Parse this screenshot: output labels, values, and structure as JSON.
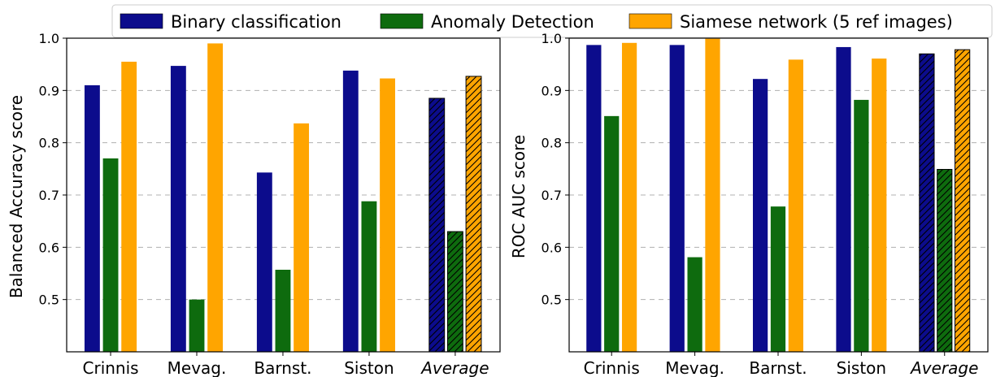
{
  "legend": {
    "position": "top",
    "entries": [
      {
        "label": "Binary classification",
        "color": "#0c0c8c"
      },
      {
        "label": "Anomaly Detection",
        "color": "#0e6b0e"
      },
      {
        "label": "Siamese network (5 ref images)",
        "color": "#ffa500"
      }
    ]
  },
  "chart_data": [
    {
      "type": "bar",
      "categories": [
        "Crinnis",
        "Mevag.",
        "Barnst.",
        "Siston",
        "Average"
      ],
      "hatched_categories": [
        "Average"
      ],
      "italic_categories": [
        "Average"
      ],
      "series": [
        {
          "name": "Binary classification",
          "values": [
            0.91,
            0.947,
            0.743,
            0.938,
            0.885
          ]
        },
        {
          "name": "Anomaly Detection",
          "values": [
            0.77,
            0.5,
            0.557,
            0.688,
            0.63
          ]
        },
        {
          "name": "Siamese network (5 ref images)",
          "values": [
            0.955,
            0.99,
            0.837,
            0.923,
            0.927
          ]
        }
      ],
      "ylabel": "Balanced Accuracy score",
      "ylim": [
        0.4,
        1.0
      ],
      "yticks": [
        "0.5",
        "0.6",
        "0.7",
        "0.8",
        "0.9",
        "1.0"
      ],
      "grid": "horizontal dashed"
    },
    {
      "type": "bar",
      "categories": [
        "Crinnis",
        "Mevag.",
        "Barnst.",
        "Siston",
        "Average"
      ],
      "hatched_categories": [
        "Average"
      ],
      "italic_categories": [
        "Average"
      ],
      "series": [
        {
          "name": "Binary classification",
          "values": [
            0.987,
            0.987,
            0.922,
            0.983,
            0.97
          ]
        },
        {
          "name": "Anomaly Detection",
          "values": [
            0.851,
            0.581,
            0.678,
            0.882,
            0.749
          ]
        },
        {
          "name": "Siamese network (5 ref images)",
          "values": [
            0.991,
            0.999,
            0.959,
            0.961,
            0.978
          ]
        }
      ],
      "ylabel": "ROC AUC score",
      "ylim": [
        0.4,
        1.0
      ],
      "yticks": [
        "0.5",
        "0.6",
        "0.7",
        "0.8",
        "0.9",
        "1.0"
      ],
      "grid": "horizontal dashed"
    }
  ]
}
